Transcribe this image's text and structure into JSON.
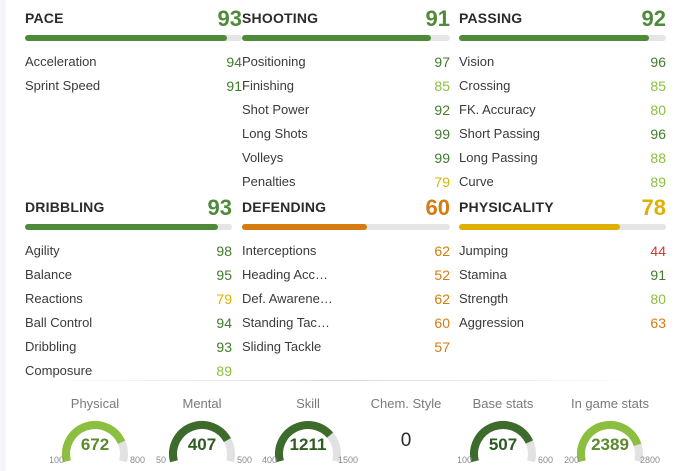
{
  "colors": {
    "green_dark": "#3f7d2c",
    "green_mid": "#4f8a3a",
    "green_light": "#8cbf3f",
    "yellow": "#d7b400",
    "orange": "#d57b10",
    "red": "#d23b2b",
    "track": "#e5e5e5"
  },
  "sections": [
    {
      "title": "PACE",
      "value": "93",
      "fill": 0.93,
      "color": "#4f8a3a",
      "stats": [
        {
          "label": "Acceleration",
          "value": "94",
          "color": "#3f7d2c"
        },
        {
          "label": "Sprint Speed",
          "value": "91",
          "color": "#3f7d2c"
        }
      ]
    },
    {
      "title": "SHOOTING",
      "value": "91",
      "fill": 0.91,
      "color": "#4f8a3a",
      "stats": [
        {
          "label": "Positioning",
          "value": "97",
          "color": "#3f7d2c"
        },
        {
          "label": "Finishing",
          "value": "85",
          "color": "#8cbf3f"
        },
        {
          "label": "Shot Power",
          "value": "92",
          "color": "#3f7d2c"
        },
        {
          "label": "Long Shots",
          "value": "99",
          "color": "#3f7d2c"
        },
        {
          "label": "Volleys",
          "value": "99",
          "color": "#3f7d2c"
        },
        {
          "label": "Penalties",
          "value": "79",
          "color": "#d7b400"
        }
      ]
    },
    {
      "title": "PASSING",
      "value": "92",
      "fill": 0.92,
      "color": "#4f8a3a",
      "stats": [
        {
          "label": "Vision",
          "value": "96",
          "color": "#3f7d2c"
        },
        {
          "label": "Crossing",
          "value": "85",
          "color": "#8cbf3f"
        },
        {
          "label": "FK. Accuracy",
          "value": "80",
          "color": "#8cbf3f"
        },
        {
          "label": "Short Passing",
          "value": "96",
          "color": "#3f7d2c"
        },
        {
          "label": "Long Passing",
          "value": "88",
          "color": "#8cbf3f"
        },
        {
          "label": "Curve",
          "value": "89",
          "color": "#8cbf3f"
        }
      ]
    },
    {
      "title": "DRIBBLING",
      "value": "93",
      "fill": 0.93,
      "color": "#4f8a3a",
      "stats": [
        {
          "label": "Agility",
          "value": "98",
          "color": "#3f7d2c"
        },
        {
          "label": "Balance",
          "value": "95",
          "color": "#3f7d2c"
        },
        {
          "label": "Reactions",
          "value": "79",
          "color": "#d7b400"
        },
        {
          "label": "Ball Control",
          "value": "94",
          "color": "#3f7d2c"
        },
        {
          "label": "Dribbling",
          "value": "93",
          "color": "#3f7d2c"
        },
        {
          "label": "Composure",
          "value": "89",
          "color": "#8cbf3f"
        }
      ]
    },
    {
      "title": "DEFENDING",
      "value": "60",
      "fill": 0.6,
      "color": "#d57b10",
      "stats": [
        {
          "label": "Interceptions",
          "value": "62",
          "color": "#d57b10"
        },
        {
          "label": "Heading Acc…",
          "value": "52",
          "color": "#d57b10"
        },
        {
          "label": "Def. Awarene…",
          "value": "62",
          "color": "#d57b10"
        },
        {
          "label": "Standing Tac…",
          "value": "60",
          "color": "#d57b10"
        },
        {
          "label": "Sliding Tackle",
          "value": "57",
          "color": "#d57b10"
        }
      ]
    },
    {
      "title": "PHYSICALITY",
      "value": "78",
      "fill": 0.78,
      "color": "#e0b000",
      "stats": [
        {
          "label": "Jumping",
          "value": "44",
          "color": "#d23b2b"
        },
        {
          "label": "Stamina",
          "value": "91",
          "color": "#3f7d2c"
        },
        {
          "label": "Strength",
          "value": "80",
          "color": "#8cbf3f"
        },
        {
          "label": "Aggression",
          "value": "63",
          "color": "#d57b10"
        }
      ]
    }
  ],
  "summary": {
    "physical": {
      "label": "Physical",
      "value": "672",
      "min": "100",
      "max": "800",
      "fraction": 0.817,
      "color": "#8cbf3f"
    },
    "mental": {
      "label": "Mental",
      "value": "407",
      "min": "50",
      "max": "500",
      "fraction": 0.793,
      "color": "#3d6b2b"
    },
    "skill": {
      "label": "Skill",
      "value": "1211",
      "min": "400",
      "max": "1500",
      "fraction": 0.737,
      "color": "#3d6b2b"
    },
    "chem": {
      "label": "Chem. Style",
      "value": "0"
    },
    "base": {
      "label": "Base stats",
      "value": "507",
      "min": "100",
      "max": "600",
      "fraction": 0.814,
      "color": "#3d6b2b"
    },
    "ingame": {
      "label": "In game stats",
      "value": "2389",
      "min": "200",
      "max": "2800",
      "fraction": 0.842,
      "color": "#8cbf3f"
    }
  }
}
